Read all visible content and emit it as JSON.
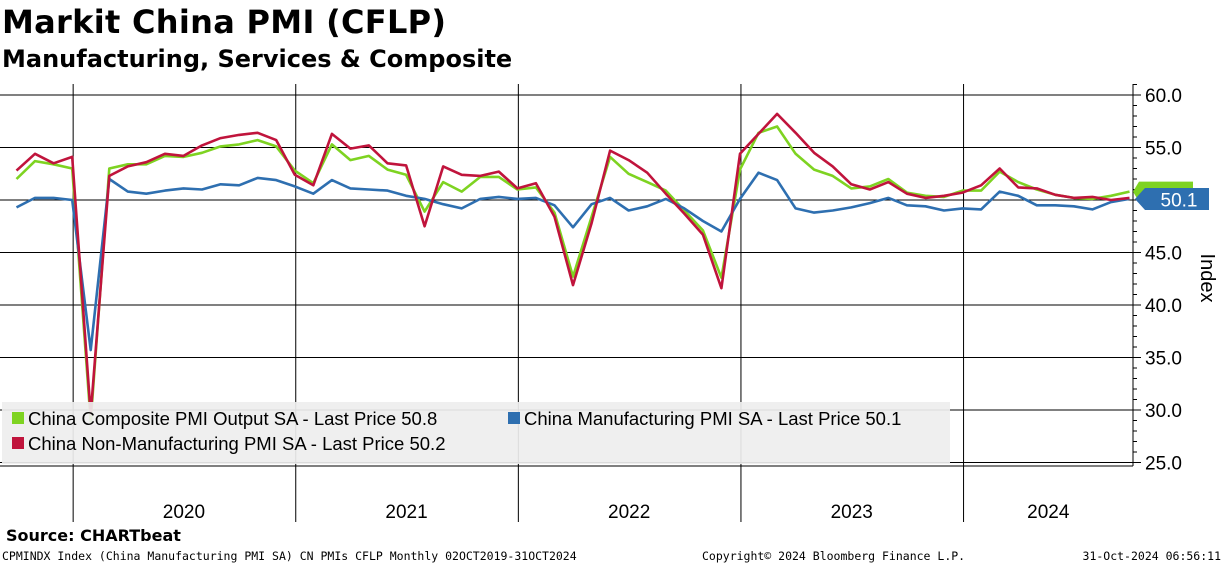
{
  "title": "Markit China PMI (CFLP)",
  "subtitle": "Manufacturing, Services & Composite",
  "source": "Source:  CHARTbeat",
  "footer": {
    "left": "CPMINDX Index (China Manufacturing PMI SA) CN PMIs CFLP  Monthly 02OCT2019-31OCT2024",
    "middle": "Copyright© 2024 Bloomberg Finance L.P.",
    "right": "31-Oct-2024 06:56:11"
  },
  "colors": {
    "composite": "#7ed321",
    "manufacturing": "#2e6fb0",
    "non_manufacturing": "#c0143c",
    "grid": "#000000",
    "legend_bg": "#eeeeee",
    "last_label_bg": "#2e6fb0",
    "last_label_green": "#7ed321"
  },
  "chart_data": {
    "type": "line",
    "title": "Markit China PMI (CFLP)",
    "subtitle": "Manufacturing, Services & Composite",
    "ylabel": "Index",
    "xlabel": "",
    "ylim": [
      23.5,
      61.5
    ],
    "yticks": [
      25.0,
      30.0,
      35.0,
      40.0,
      45.0,
      50.0,
      55.0,
      60.0
    ],
    "ytick_labels": [
      "25.0",
      "30.0",
      "35.0",
      "40.0",
      "45.0",
      "50.0",
      "55.0",
      "60.0"
    ],
    "year_labels": [
      "2020",
      "2021",
      "2022",
      "2023",
      "2024"
    ],
    "start_month": "2019-10",
    "x": [
      "2019-10",
      "2019-11",
      "2019-12",
      "2020-01",
      "2020-02",
      "2020-03",
      "2020-04",
      "2020-05",
      "2020-06",
      "2020-07",
      "2020-08",
      "2020-09",
      "2020-10",
      "2020-11",
      "2020-12",
      "2021-01",
      "2021-02",
      "2021-03",
      "2021-04",
      "2021-05",
      "2021-06",
      "2021-07",
      "2021-08",
      "2021-09",
      "2021-10",
      "2021-11",
      "2021-12",
      "2022-01",
      "2022-02",
      "2022-03",
      "2022-04",
      "2022-05",
      "2022-06",
      "2022-07",
      "2022-08",
      "2022-09",
      "2022-10",
      "2022-11",
      "2022-12",
      "2023-01",
      "2023-02",
      "2023-03",
      "2023-04",
      "2023-05",
      "2023-06",
      "2023-07",
      "2023-08",
      "2023-09",
      "2023-10",
      "2023-11",
      "2023-12",
      "2024-01",
      "2024-02",
      "2024-03",
      "2024-04",
      "2024-05",
      "2024-06",
      "2024-07",
      "2024-08",
      "2024-09",
      "2024-10"
    ],
    "series": [
      {
        "name": "China Composite PMI Output SA",
        "legend": "China Composite PMI Output SA - Last Price  50.8",
        "color_key": "composite",
        "last": 50.8,
        "values": [
          52.0,
          53.7,
          53.4,
          53.0,
          28.9,
          53.0,
          53.4,
          53.4,
          54.2,
          54.1,
          54.5,
          55.1,
          55.3,
          55.7,
          55.1,
          52.8,
          51.6,
          55.3,
          53.8,
          54.2,
          52.9,
          52.4,
          48.9,
          51.7,
          50.8,
          52.2,
          52.2,
          51.0,
          51.2,
          48.8,
          42.7,
          48.4,
          54.1,
          52.5,
          51.7,
          50.9,
          49.0,
          47.1,
          42.6,
          52.9,
          56.4,
          57.0,
          54.4,
          52.9,
          52.3,
          51.1,
          51.3,
          52.0,
          50.7,
          50.4,
          50.3,
          50.9,
          50.9,
          52.7,
          51.7,
          51.0,
          50.5,
          50.2,
          50.1,
          50.4,
          50.8
        ]
      },
      {
        "name": "China Manufacturing PMI SA",
        "legend": "China Manufacturing PMI SA - Last Price 50.1",
        "color_key": "manufacturing",
        "last": 50.1,
        "values": [
          49.3,
          50.2,
          50.2,
          50.0,
          35.7,
          52.0,
          50.8,
          50.6,
          50.9,
          51.1,
          51.0,
          51.5,
          51.4,
          52.1,
          51.9,
          51.3,
          50.6,
          51.9,
          51.1,
          51.0,
          50.9,
          50.4,
          50.1,
          49.6,
          49.2,
          50.1,
          50.3,
          50.1,
          50.2,
          49.5,
          47.4,
          49.6,
          50.2,
          49.0,
          49.4,
          50.1,
          49.2,
          48.0,
          47.0,
          50.1,
          52.6,
          51.9,
          49.2,
          48.8,
          49.0,
          49.3,
          49.7,
          50.2,
          49.5,
          49.4,
          49.0,
          49.2,
          49.1,
          50.8,
          50.4,
          49.5,
          49.5,
          49.4,
          49.1,
          49.8,
          50.1
        ]
      },
      {
        "name": "China Non-Manufacturing PMI SA",
        "legend": "China Non-Manufacturing PMI SA - Last Price 50.2",
        "color_key": "non_manufacturing",
        "last": 50.2,
        "values": [
          52.8,
          54.4,
          53.5,
          54.1,
          29.6,
          52.3,
          53.2,
          53.6,
          54.4,
          54.2,
          55.2,
          55.9,
          56.2,
          56.4,
          55.7,
          52.4,
          51.4,
          56.3,
          54.9,
          55.2,
          53.5,
          53.3,
          47.5,
          53.2,
          52.4,
          52.3,
          52.7,
          51.1,
          51.6,
          48.4,
          41.9,
          47.8,
          54.7,
          53.8,
          52.6,
          50.6,
          48.7,
          46.7,
          41.6,
          54.4,
          56.3,
          58.2,
          56.4,
          54.5,
          53.2,
          51.5,
          51.0,
          51.7,
          50.6,
          50.2,
          50.4,
          50.7,
          51.4,
          53.0,
          51.2,
          51.1,
          50.5,
          50.2,
          50.3,
          50.0,
          50.2
        ]
      }
    ],
    "legend_position": "bottom-left",
    "grid": true,
    "last_value_labels": [
      "50.1"
    ]
  }
}
